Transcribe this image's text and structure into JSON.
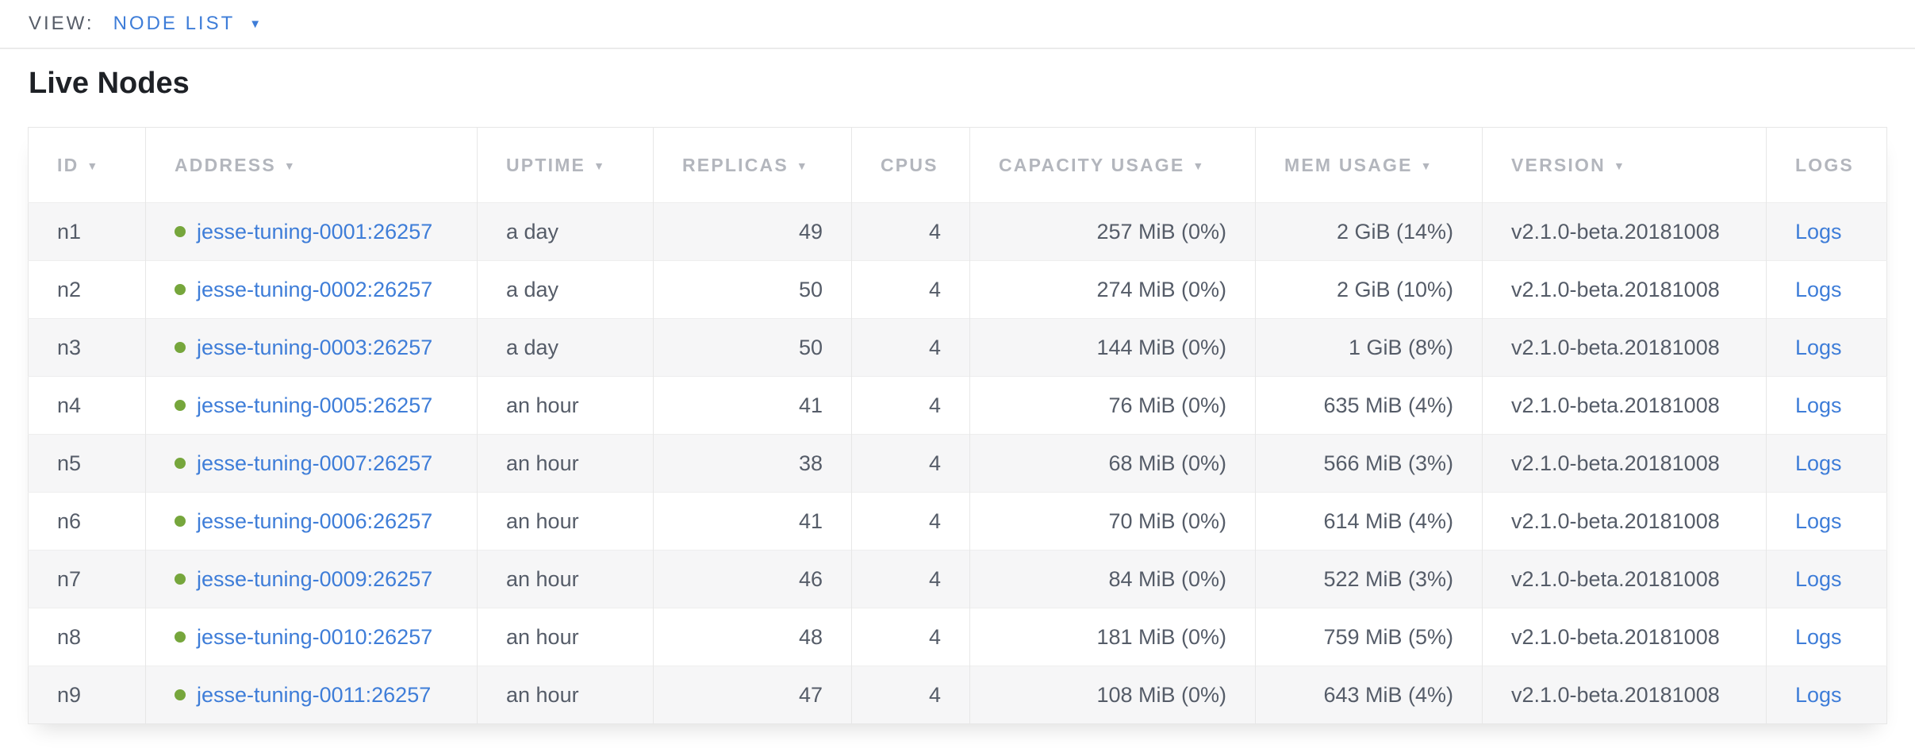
{
  "view_bar": {
    "label": "VIEW:",
    "selected_view": "NODE LIST"
  },
  "page": {
    "title": "Live Nodes"
  },
  "icons": {
    "dropdown_caret": "▼",
    "sort_desc_arrow": "▼",
    "live_status_dot": "circle"
  },
  "colors": {
    "link_blue": "#3e7dd8",
    "live_dot_green": "#76a63c",
    "header_gray": "#b3b6bd",
    "cell_text": "#555c68",
    "row_stripe": "#f6f6f7",
    "border": "#e7e7e7"
  },
  "table": {
    "columns": [
      {
        "key": "id",
        "label": "ID",
        "sortable": true
      },
      {
        "key": "address",
        "label": "ADDRESS",
        "sortable": true
      },
      {
        "key": "uptime",
        "label": "UPTIME",
        "sortable": true
      },
      {
        "key": "replicas",
        "label": "REPLICAS",
        "sortable": true
      },
      {
        "key": "cpus",
        "label": "CPUS",
        "sortable": false
      },
      {
        "key": "capacity-usage",
        "label": "CAPACITY USAGE",
        "sortable": true
      },
      {
        "key": "mem-usage",
        "label": "MEM USAGE",
        "sortable": true
      },
      {
        "key": "version",
        "label": "VERSION",
        "sortable": true
      },
      {
        "key": "logs",
        "label": "LOGS",
        "sortable": false
      }
    ],
    "rows": [
      {
        "id": "n1",
        "address": "jesse-tuning-0001:26257",
        "uptime": "a day",
        "replicas": "49",
        "cpus": "4",
        "capacity": "257 MiB (0%)",
        "mem": "2 GiB (14%)",
        "version": "v2.1.0-beta.20181008",
        "logs": "Logs"
      },
      {
        "id": "n2",
        "address": "jesse-tuning-0002:26257",
        "uptime": "a day",
        "replicas": "50",
        "cpus": "4",
        "capacity": "274 MiB (0%)",
        "mem": "2 GiB (10%)",
        "version": "v2.1.0-beta.20181008",
        "logs": "Logs"
      },
      {
        "id": "n3",
        "address": "jesse-tuning-0003:26257",
        "uptime": "a day",
        "replicas": "50",
        "cpus": "4",
        "capacity": "144 MiB (0%)",
        "mem": "1 GiB (8%)",
        "version": "v2.1.0-beta.20181008",
        "logs": "Logs"
      },
      {
        "id": "n4",
        "address": "jesse-tuning-0005:26257",
        "uptime": "an hour",
        "replicas": "41",
        "cpus": "4",
        "capacity": "76 MiB (0%)",
        "mem": "635 MiB (4%)",
        "version": "v2.1.0-beta.20181008",
        "logs": "Logs"
      },
      {
        "id": "n5",
        "address": "jesse-tuning-0007:26257",
        "uptime": "an hour",
        "replicas": "38",
        "cpus": "4",
        "capacity": "68 MiB (0%)",
        "mem": "566 MiB (3%)",
        "version": "v2.1.0-beta.20181008",
        "logs": "Logs"
      },
      {
        "id": "n6",
        "address": "jesse-tuning-0006:26257",
        "uptime": "an hour",
        "replicas": "41",
        "cpus": "4",
        "capacity": "70 MiB (0%)",
        "mem": "614 MiB (4%)",
        "version": "v2.1.0-beta.20181008",
        "logs": "Logs"
      },
      {
        "id": "n7",
        "address": "jesse-tuning-0009:26257",
        "uptime": "an hour",
        "replicas": "46",
        "cpus": "4",
        "capacity": "84 MiB (0%)",
        "mem": "522 MiB (3%)",
        "version": "v2.1.0-beta.20181008",
        "logs": "Logs"
      },
      {
        "id": "n8",
        "address": "jesse-tuning-0010:26257",
        "uptime": "an hour",
        "replicas": "48",
        "cpus": "4",
        "capacity": "181 MiB (0%)",
        "mem": "759 MiB (5%)",
        "version": "v2.1.0-beta.20181008",
        "logs": "Logs"
      },
      {
        "id": "n9",
        "address": "jesse-tuning-0011:26257",
        "uptime": "an hour",
        "replicas": "47",
        "cpus": "4",
        "capacity": "108 MiB (0%)",
        "mem": "643 MiB (4%)",
        "version": "v2.1.0-beta.20181008",
        "logs": "Logs"
      }
    ]
  }
}
